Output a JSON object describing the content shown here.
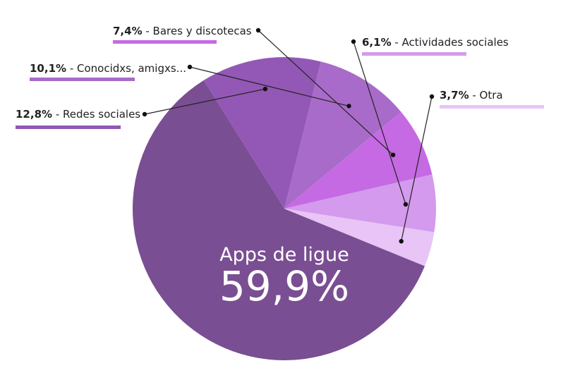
{
  "chart_data": {
    "type": "pie",
    "slices": [
      {
        "pct_label": "59,9%",
        "label": "Apps de ligue",
        "value": 59.9,
        "color": "#7a4e92"
      },
      {
        "pct_label": "12,8%",
        "label": " - Redes sociales",
        "value": 12.8,
        "color": "#9358b5"
      },
      {
        "pct_label": "10,1%",
        "label": " - Conocidxs, amigxs...",
        "value": 10.1,
        "color": "#a96bc9"
      },
      {
        "pct_label": "7,4%",
        "label": " - Bares y discotecas",
        "value": 7.4,
        "color": "#c56ae3"
      },
      {
        "pct_label": "6,1%",
        "label": " - Actividades sociales",
        "value": 6.1,
        "color": "#d49aed"
      },
      {
        "pct_label": "3,7%",
        "label": " - Otra",
        "value": 3.7,
        "color": "#e8c4f7"
      }
    ],
    "center": {
      "title": "Apps de ligue",
      "value": "59,9%"
    }
  }
}
